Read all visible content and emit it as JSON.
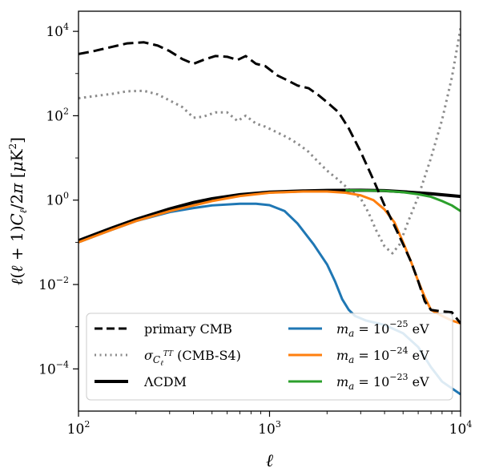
{
  "chart_data": {
    "type": "line",
    "xlabel": "ℓ",
    "ylabel": "ℓ(ℓ+1)C_ℓ/2π [μK²]",
    "xscale": "log",
    "yscale": "log",
    "xlim": [
      100,
      10000
    ],
    "ylim": [
      1e-05,
      30000
    ],
    "x_ticks": [
      {
        "value": 100,
        "base": "10",
        "exp": "2"
      },
      {
        "value": 1000,
        "base": "10",
        "exp": "3"
      },
      {
        "value": 10000,
        "base": "10",
        "exp": "4"
      }
    ],
    "y_ticks": [
      {
        "value": 0.0001,
        "base": "10",
        "exp": "−4"
      },
      {
        "value": 0.01,
        "base": "10",
        "exp": "−2"
      },
      {
        "value": 1,
        "base": "10",
        "exp": "0"
      },
      {
        "value": 100,
        "base": "10",
        "exp": "2"
      },
      {
        "value": 10000,
        "base": "10",
        "exp": "4"
      }
    ],
    "grid": false,
    "legend": {
      "placement": "bottom",
      "columns": 2,
      "entries_col1": [
        {
          "series": "primary_cmb",
          "label": "primary CMB"
        },
        {
          "series": "sigma_cmb_s4",
          "label_symbol": "σ",
          "label_sub": "C",
          "label_subsub": "ℓ",
          "label_supsub": "TT",
          "label_rest": " (CMB-S4)"
        },
        {
          "series": "lcdm",
          "label": "ΛCDM"
        }
      ],
      "entries_col2": [
        {
          "series": "ma_1e-25",
          "label_pre": "m",
          "label_sub": "a",
          "label_mid": " = 10",
          "label_exp": "−25",
          "label_post": " eV"
        },
        {
          "series": "ma_1e-24",
          "label_pre": "m",
          "label_sub": "a",
          "label_mid": " = 10",
          "label_exp": "−24",
          "label_post": " eV"
        },
        {
          "series": "ma_1e-23",
          "label_pre": "m",
          "label_sub": "a",
          "label_mid": " = 10",
          "label_exp": "−23",
          "label_post": " eV"
        }
      ]
    },
    "series": [
      {
        "id": "primary_cmb",
        "color": "#000000",
        "style": "dashed",
        "x": [
          100,
          120,
          150,
          180,
          220,
          260,
          300,
          350,
          400,
          450,
          520,
          600,
          680,
          750,
          850,
          950,
          1100,
          1250,
          1400,
          1600,
          1800,
          2000,
          2300,
          2600,
          3000,
          3500,
          4000,
          4500,
          5000,
          5500,
          6000,
          6500,
          7000,
          8000,
          9000,
          10000
        ],
        "y": [
          2900,
          3400,
          4300,
          5200,
          5500,
          4600,
          3400,
          2200,
          1700,
          2100,
          2600,
          2500,
          2100,
          2600,
          1700,
          1500,
          900,
          680,
          520,
          450,
          310,
          210,
          120,
          50,
          14,
          3.0,
          0.75,
          0.25,
          0.09,
          0.035,
          0.012,
          0.004,
          0.0025,
          0.0023,
          0.0022,
          0.0012
        ]
      },
      {
        "id": "sigma_cmb_s4",
        "color": "#8c8c8c",
        "style": "dotted",
        "x": [
          100,
          120,
          150,
          180,
          220,
          260,
          300,
          350,
          400,
          450,
          520,
          600,
          680,
          750,
          850,
          950,
          1100,
          1250,
          1400,
          1600,
          1800,
          2000,
          2300,
          2600,
          3000,
          3300,
          3600,
          4000,
          4400,
          4800,
          5300,
          6000,
          7000,
          8000,
          9000,
          10000
        ],
        "y": [
          260,
          290,
          330,
          380,
          390,
          320,
          230,
          160,
          90,
          95,
          120,
          120,
          75,
          100,
          65,
          55,
          40,
          30,
          22,
          14,
          8,
          5,
          3.0,
          1.8,
          1.1,
          0.5,
          0.2,
          0.08,
          0.055,
          0.09,
          0.3,
          1.2,
          10,
          80,
          800,
          12000
        ]
      },
      {
        "id": "lcdm",
        "color": "#000000",
        "style": "solid",
        "x": [
          100,
          150,
          200,
          300,
          400,
          500,
          700,
          1000,
          1500,
          2000,
          3000,
          4000,
          5000,
          7000,
          10000
        ],
        "y": [
          0.11,
          0.22,
          0.35,
          0.62,
          0.88,
          1.08,
          1.35,
          1.55,
          1.65,
          1.7,
          1.72,
          1.68,
          1.58,
          1.42,
          1.22
        ]
      },
      {
        "id": "ma_1e-25",
        "color": "#1f77b4",
        "style": "solid",
        "x": [
          100,
          150,
          200,
          300,
          400,
          500,
          700,
          850,
          1000,
          1200,
          1400,
          1700,
          2000,
          2200,
          2400,
          2600,
          2800,
          3200,
          4000,
          5000,
          6000,
          7000,
          8000,
          10000
        ],
        "y": [
          0.1,
          0.2,
          0.32,
          0.52,
          0.65,
          0.75,
          0.82,
          0.82,
          0.76,
          0.55,
          0.28,
          0.09,
          0.03,
          0.012,
          0.0045,
          0.0025,
          0.0018,
          0.0014,
          0.0011,
          0.0007,
          0.00033,
          0.00011,
          5e-05,
          2.5e-05
        ]
      },
      {
        "id": "ma_1e-24",
        "color": "#ff7f0e",
        "style": "solid",
        "x": [
          100,
          150,
          200,
          300,
          500,
          700,
          1000,
          1500,
          2000,
          2500,
          3000,
          3500,
          4000,
          4500,
          5000,
          5500,
          6000,
          6500,
          7000,
          8000,
          9000,
          10000
        ],
        "y": [
          0.1,
          0.2,
          0.32,
          0.55,
          0.95,
          1.25,
          1.5,
          1.6,
          1.6,
          1.5,
          1.3,
          1.0,
          0.6,
          0.3,
          0.1,
          0.035,
          0.012,
          0.005,
          0.0025,
          0.0018,
          0.0014,
          0.0012
        ]
      },
      {
        "id": "ma_1e-23",
        "color": "#2ca02c",
        "style": "solid",
        "x": [
          2500,
          3000,
          4000,
          5000,
          6000,
          7000,
          8000,
          9000,
          10000
        ],
        "y": [
          1.71,
          1.7,
          1.66,
          1.54,
          1.38,
          1.2,
          0.95,
          0.75,
          0.55
        ]
      }
    ]
  }
}
